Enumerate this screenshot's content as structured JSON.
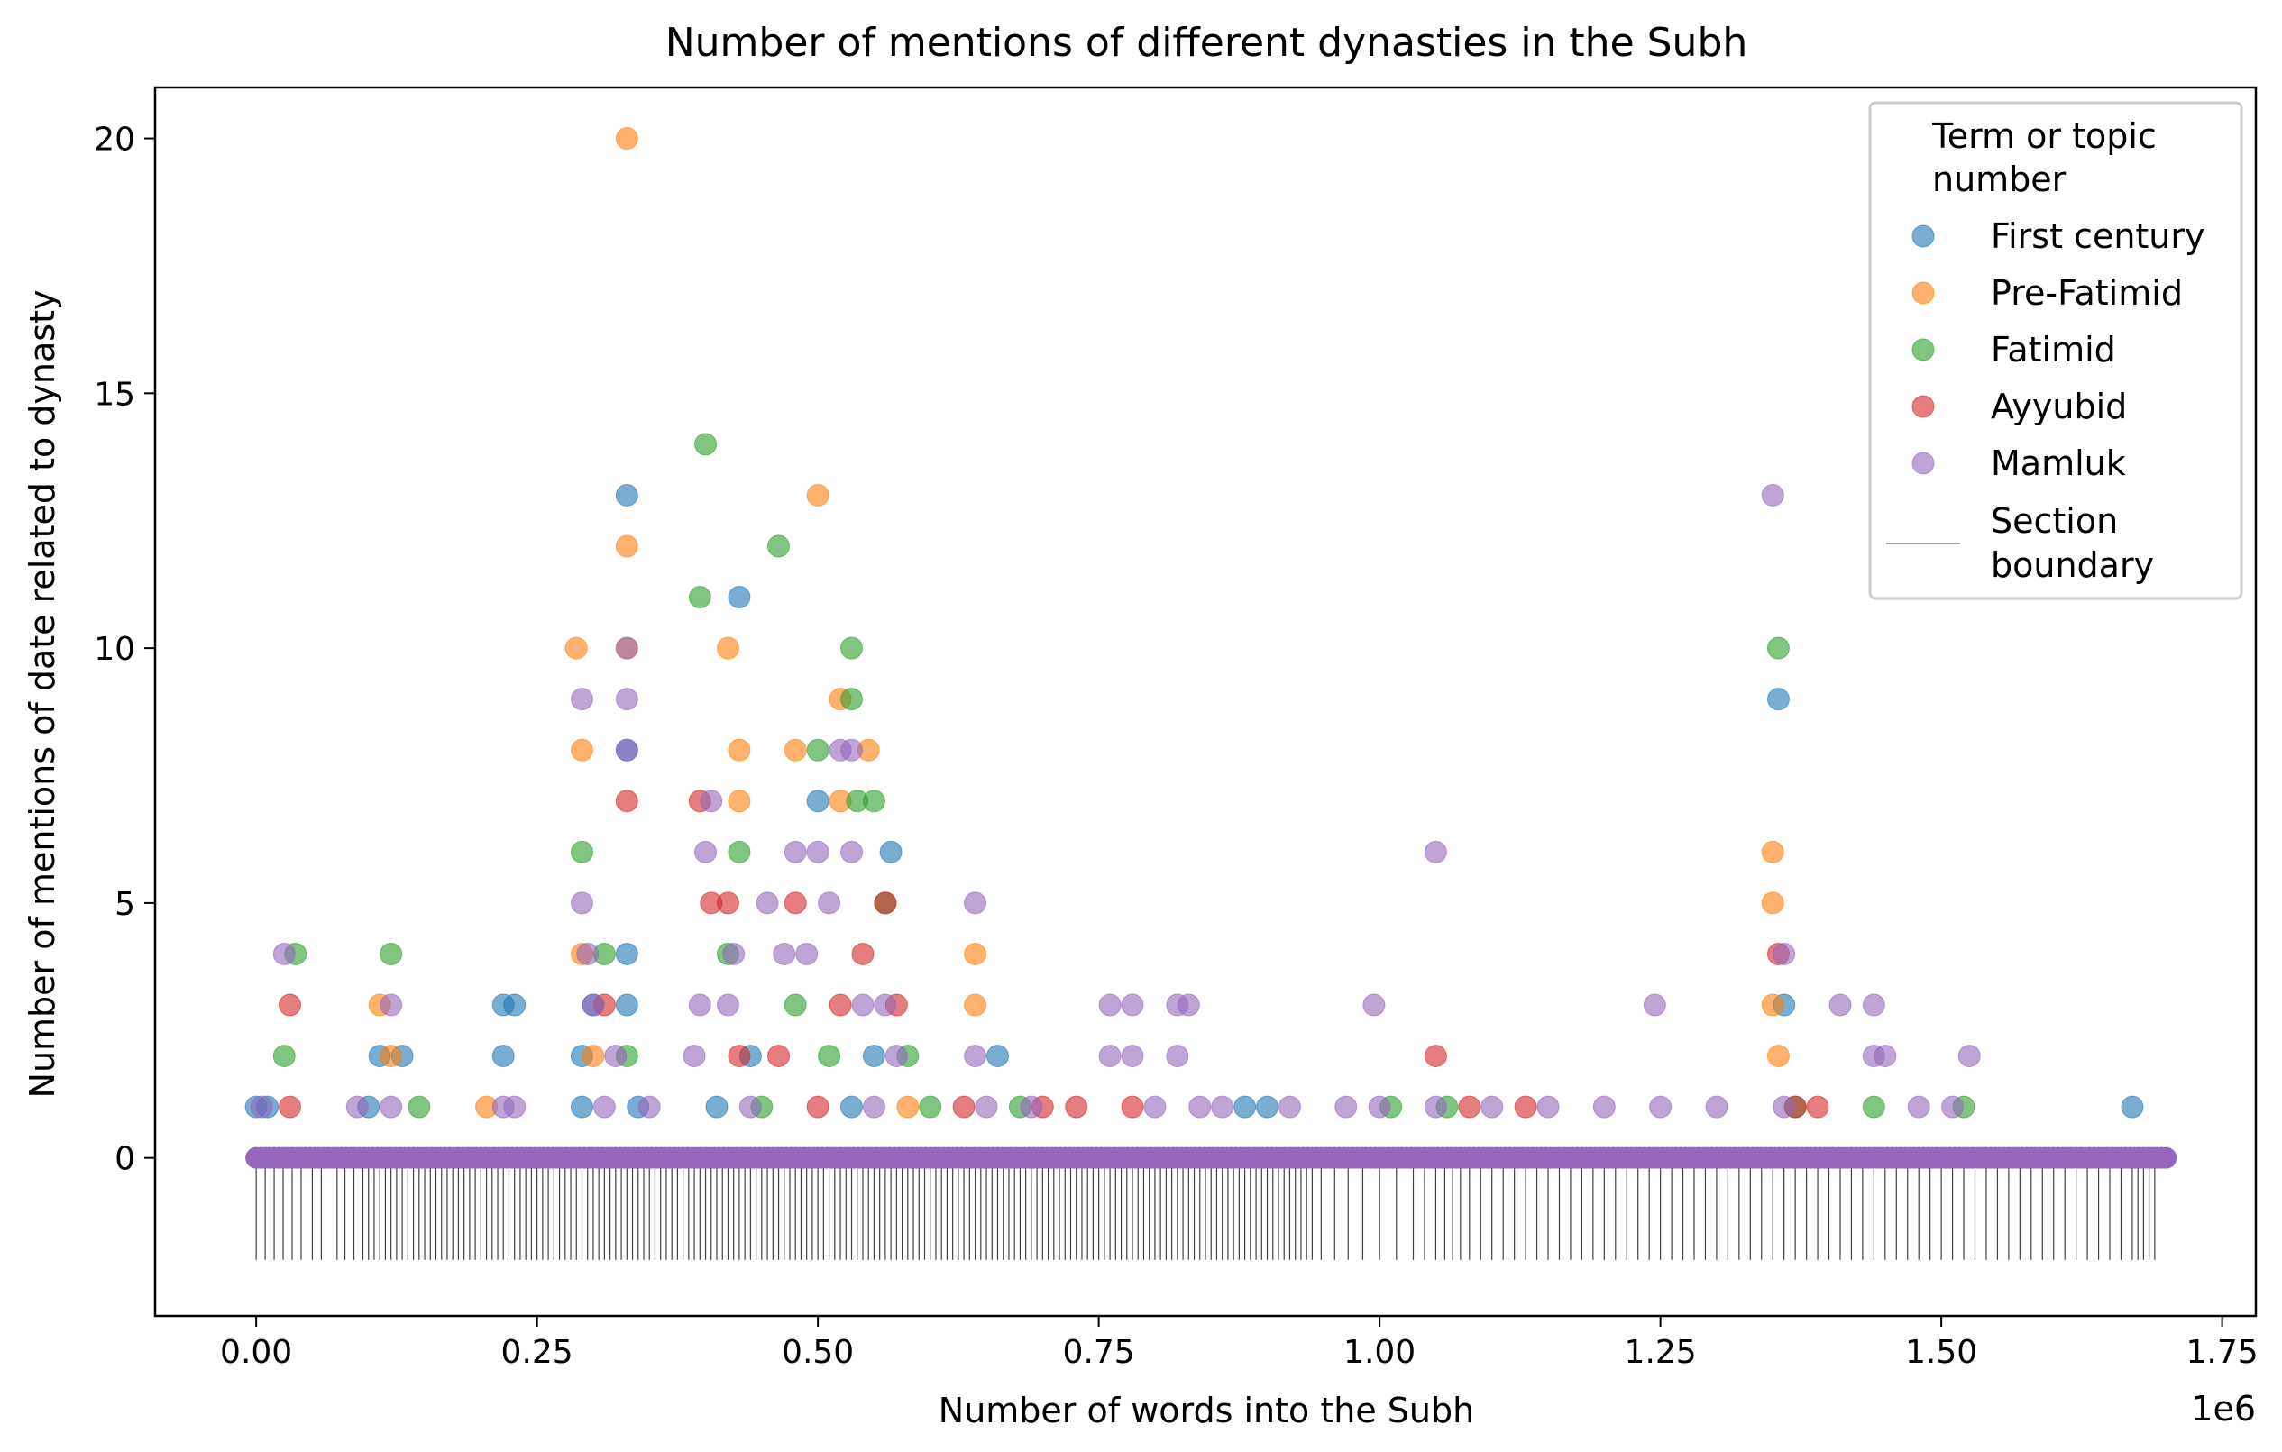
{
  "chart_data": {
    "type": "scatter",
    "title": "Number of mentions of different dynasties in the Subh",
    "xlabel": "Number of words into the Subh",
    "ylabel": "Number of mentions of date related to dynasty",
    "x_offset_label": "1e6",
    "xlim": [
      -0.09,
      1.78
    ],
    "ylim": [
      -3.1,
      21
    ],
    "x_unit_multiplier": 1000000,
    "x_ticks": [
      0.0,
      0.25,
      0.5,
      0.75,
      1.0,
      1.25,
      1.5,
      1.75
    ],
    "x_tick_labels": [
      "0.00",
      "0.25",
      "0.50",
      "0.75",
      "1.00",
      "1.25",
      "1.50",
      "1.75"
    ],
    "y_ticks": [
      0,
      5,
      10,
      15,
      20
    ],
    "y_tick_labels": [
      "0",
      "5",
      "10",
      "15",
      "20"
    ],
    "grid": false,
    "legend": {
      "title": "Term or topic number",
      "placement": "top-right",
      "boundary_label": "Section boundary"
    },
    "zero_baseline": {
      "x_range": [
        0.0,
        1.7
      ],
      "y": 0
    },
    "section_boundaries": {
      "y_range": [
        -2,
        0
      ],
      "x": [
        0.0,
        0.008,
        0.016,
        0.024,
        0.032,
        0.04,
        0.05,
        0.058,
        0.072,
        0.079,
        0.087,
        0.095,
        0.1,
        0.105,
        0.11,
        0.115,
        0.12,
        0.125,
        0.13,
        0.135,
        0.14,
        0.145,
        0.15,
        0.155,
        0.16,
        0.165,
        0.17,
        0.175,
        0.18,
        0.185,
        0.19,
        0.195,
        0.2,
        0.205,
        0.21,
        0.215,
        0.22,
        0.225,
        0.23,
        0.235,
        0.24,
        0.245,
        0.25,
        0.255,
        0.26,
        0.265,
        0.27,
        0.275,
        0.28,
        0.285,
        0.29,
        0.295,
        0.3,
        0.305,
        0.31,
        0.315,
        0.32,
        0.325,
        0.33,
        0.335,
        0.34,
        0.345,
        0.35,
        0.355,
        0.36,
        0.365,
        0.37,
        0.375,
        0.38,
        0.385,
        0.39,
        0.395,
        0.4,
        0.405,
        0.41,
        0.415,
        0.42,
        0.425,
        0.43,
        0.435,
        0.44,
        0.445,
        0.45,
        0.455,
        0.46,
        0.465,
        0.47,
        0.475,
        0.48,
        0.485,
        0.49,
        0.495,
        0.5,
        0.505,
        0.51,
        0.515,
        0.52,
        0.525,
        0.53,
        0.535,
        0.54,
        0.545,
        0.55,
        0.555,
        0.56,
        0.565,
        0.57,
        0.575,
        0.58,
        0.585,
        0.59,
        0.595,
        0.6,
        0.605,
        0.61,
        0.615,
        0.62,
        0.625,
        0.63,
        0.635,
        0.64,
        0.645,
        0.65,
        0.655,
        0.66,
        0.665,
        0.67,
        0.675,
        0.68,
        0.685,
        0.69,
        0.695,
        0.7,
        0.705,
        0.71,
        0.715,
        0.72,
        0.725,
        0.73,
        0.735,
        0.74,
        0.745,
        0.75,
        0.755,
        0.76,
        0.765,
        0.77,
        0.775,
        0.78,
        0.785,
        0.79,
        0.795,
        0.8,
        0.805,
        0.81,
        0.815,
        0.82,
        0.825,
        0.83,
        0.835,
        0.84,
        0.845,
        0.85,
        0.855,
        0.86,
        0.865,
        0.87,
        0.875,
        0.88,
        0.885,
        0.89,
        0.895,
        0.9,
        0.905,
        0.91,
        0.915,
        0.92,
        0.925,
        0.93,
        0.935,
        0.94,
        0.948,
        0.96,
        0.972,
        0.985,
        1.0,
        1.015,
        1.03,
        1.04,
        1.05,
        1.058,
        1.065,
        1.072,
        1.08,
        1.09,
        1.1,
        1.11,
        1.12,
        1.13,
        1.14,
        1.15,
        1.16,
        1.17,
        1.18,
        1.19,
        1.2,
        1.21,
        1.22,
        1.23,
        1.24,
        1.25,
        1.26,
        1.27,
        1.28,
        1.29,
        1.3,
        1.31,
        1.32,
        1.33,
        1.34,
        1.35,
        1.36,
        1.37,
        1.38,
        1.39,
        1.4,
        1.41,
        1.42,
        1.43,
        1.44,
        1.45,
        1.46,
        1.47,
        1.48,
        1.49,
        1.5,
        1.51,
        1.52,
        1.53,
        1.54,
        1.55,
        1.56,
        1.57,
        1.58,
        1.59,
        1.6,
        1.61,
        1.62,
        1.63,
        1.64,
        1.65,
        1.66,
        1.67,
        1.675,
        1.68,
        1.685,
        1.69
      ]
    },
    "series": [
      {
        "name": "First century",
        "color": "#1f77b4",
        "points": [
          [
            0.0,
            1
          ],
          [
            0.01,
            1
          ],
          [
            0.1,
            1
          ],
          [
            0.11,
            2
          ],
          [
            0.13,
            2
          ],
          [
            0.22,
            2
          ],
          [
            0.22,
            3
          ],
          [
            0.23,
            3
          ],
          [
            0.29,
            1
          ],
          [
            0.29,
            2
          ],
          [
            0.3,
            3
          ],
          [
            0.33,
            13
          ],
          [
            0.33,
            4
          ],
          [
            0.33,
            3
          ],
          [
            0.33,
            8
          ],
          [
            0.34,
            1
          ],
          [
            0.41,
            1
          ],
          [
            0.43,
            11
          ],
          [
            0.44,
            2
          ],
          [
            0.5,
            7
          ],
          [
            0.53,
            1
          ],
          [
            0.55,
            2
          ],
          [
            0.565,
            6
          ],
          [
            0.66,
            2
          ],
          [
            0.88,
            1
          ],
          [
            0.9,
            1
          ],
          [
            1.355,
            9
          ],
          [
            1.36,
            3
          ],
          [
            1.67,
            1
          ]
        ]
      },
      {
        "name": "Pre-Fatimid",
        "color": "#ff7f0e",
        "points": [
          [
            0.11,
            3
          ],
          [
            0.12,
            2
          ],
          [
            0.205,
            1
          ],
          [
            0.285,
            10
          ],
          [
            0.29,
            8
          ],
          [
            0.29,
            4
          ],
          [
            0.3,
            2
          ],
          [
            0.33,
            20
          ],
          [
            0.33,
            12
          ],
          [
            0.33,
            10
          ],
          [
            0.42,
            10
          ],
          [
            0.43,
            8
          ],
          [
            0.43,
            7
          ],
          [
            0.5,
            13
          ],
          [
            0.48,
            8
          ],
          [
            0.52,
            9
          ],
          [
            0.52,
            7
          ],
          [
            0.545,
            8
          ],
          [
            0.58,
            1
          ],
          [
            0.64,
            4
          ],
          [
            0.64,
            3
          ],
          [
            1.35,
            6
          ],
          [
            1.35,
            5
          ],
          [
            1.35,
            3
          ],
          [
            1.355,
            2
          ]
        ]
      },
      {
        "name": "Fatimid",
        "color": "#2ca02c",
        "points": [
          [
            0.025,
            2
          ],
          [
            0.035,
            4
          ],
          [
            0.12,
            4
          ],
          [
            0.145,
            1
          ],
          [
            0.29,
            6
          ],
          [
            0.31,
            4
          ],
          [
            0.33,
            2
          ],
          [
            0.395,
            11
          ],
          [
            0.4,
            14
          ],
          [
            0.42,
            4
          ],
          [
            0.43,
            6
          ],
          [
            0.45,
            1
          ],
          [
            0.465,
            12
          ],
          [
            0.48,
            3
          ],
          [
            0.5,
            8
          ],
          [
            0.51,
            2
          ],
          [
            0.53,
            10
          ],
          [
            0.53,
            9
          ],
          [
            0.535,
            7
          ],
          [
            0.55,
            7
          ],
          [
            0.56,
            5
          ],
          [
            0.58,
            2
          ],
          [
            0.6,
            1
          ],
          [
            0.68,
            1
          ],
          [
            1.01,
            1
          ],
          [
            1.06,
            1
          ],
          [
            1.355,
            10
          ],
          [
            1.37,
            1
          ],
          [
            1.44,
            1
          ],
          [
            1.52,
            1
          ]
        ]
      },
      {
        "name": "Ayyubid",
        "color": "#d62728",
        "points": [
          [
            0.03,
            3
          ],
          [
            0.03,
            1
          ],
          [
            0.31,
            3
          ],
          [
            0.33,
            7
          ],
          [
            0.395,
            7
          ],
          [
            0.405,
            5
          ],
          [
            0.42,
            5
          ],
          [
            0.43,
            2
          ],
          [
            0.465,
            2
          ],
          [
            0.48,
            5
          ],
          [
            0.5,
            1
          ],
          [
            0.52,
            3
          ],
          [
            0.54,
            4
          ],
          [
            0.56,
            5
          ],
          [
            0.57,
            3
          ],
          [
            0.63,
            1
          ],
          [
            0.7,
            1
          ],
          [
            0.73,
            1
          ],
          [
            0.78,
            1
          ],
          [
            1.05,
            2
          ],
          [
            1.08,
            1
          ],
          [
            1.13,
            1
          ],
          [
            1.355,
            4
          ],
          [
            1.37,
            1
          ],
          [
            1.39,
            1
          ]
        ]
      },
      {
        "name": "Mamluk",
        "color": "#9467bd",
        "points": [
          [
            0.005,
            1
          ],
          [
            0.025,
            4
          ],
          [
            0.09,
            1
          ],
          [
            0.12,
            1
          ],
          [
            0.12,
            3
          ],
          [
            0.22,
            1
          ],
          [
            0.23,
            1
          ],
          [
            0.29,
            9
          ],
          [
            0.29,
            5
          ],
          [
            0.295,
            4
          ],
          [
            0.3,
            3
          ],
          [
            0.31,
            1
          ],
          [
            0.32,
            2
          ],
          [
            0.33,
            10
          ],
          [
            0.33,
            9
          ],
          [
            0.33,
            8
          ],
          [
            0.35,
            1
          ],
          [
            0.39,
            2
          ],
          [
            0.395,
            3
          ],
          [
            0.4,
            6
          ],
          [
            0.405,
            7
          ],
          [
            0.42,
            3
          ],
          [
            0.425,
            4
          ],
          [
            0.44,
            1
          ],
          [
            0.455,
            5
          ],
          [
            0.47,
            4
          ],
          [
            0.48,
            6
          ],
          [
            0.49,
            4
          ],
          [
            0.5,
            6
          ],
          [
            0.51,
            5
          ],
          [
            0.52,
            8
          ],
          [
            0.53,
            8
          ],
          [
            0.53,
            6
          ],
          [
            0.54,
            3
          ],
          [
            0.55,
            1
          ],
          [
            0.56,
            3
          ],
          [
            0.57,
            2
          ],
          [
            0.64,
            5
          ],
          [
            0.64,
            2
          ],
          [
            0.65,
            1
          ],
          [
            0.69,
            1
          ],
          [
            0.76,
            3
          ],
          [
            0.76,
            2
          ],
          [
            0.78,
            3
          ],
          [
            0.78,
            2
          ],
          [
            0.8,
            1
          ],
          [
            0.82,
            3
          ],
          [
            0.82,
            2
          ],
          [
            0.83,
            3
          ],
          [
            0.84,
            1
          ],
          [
            0.86,
            1
          ],
          [
            0.92,
            1
          ],
          [
            0.97,
            1
          ],
          [
            0.995,
            3
          ],
          [
            1.0,
            1
          ],
          [
            1.05,
            6
          ],
          [
            1.05,
            1
          ],
          [
            1.1,
            1
          ],
          [
            1.15,
            1
          ],
          [
            1.2,
            1
          ],
          [
            1.245,
            3
          ],
          [
            1.25,
            1
          ],
          [
            1.3,
            1
          ],
          [
            1.35,
            13
          ],
          [
            1.36,
            4
          ],
          [
            1.36,
            1
          ],
          [
            1.41,
            3
          ],
          [
            1.44,
            3
          ],
          [
            1.44,
            2
          ],
          [
            1.45,
            2
          ],
          [
            1.48,
            1
          ],
          [
            1.525,
            2
          ],
          [
            1.51,
            1
          ]
        ]
      }
    ]
  }
}
